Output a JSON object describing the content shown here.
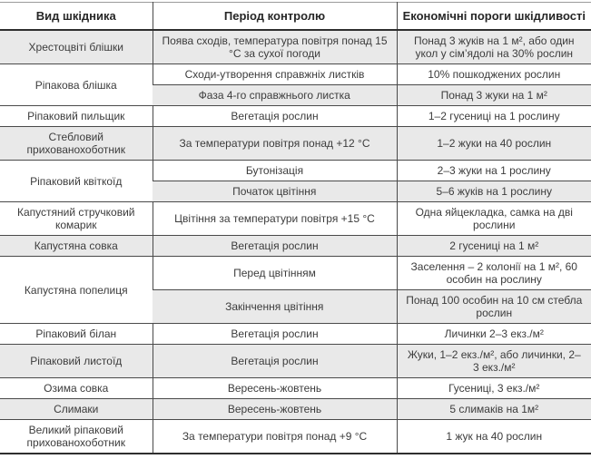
{
  "colors": {
    "stripe": "#e9e9e9",
    "grid_line": "#4a4a4a",
    "heavy_line": "#2e2e2e",
    "text": "#3c3c3c"
  },
  "header": {
    "columns": [
      {
        "label": "Вид шкідника"
      },
      {
        "label": "Період контролю"
      },
      {
        "label": "Економічні пороги шкідливості"
      }
    ]
  },
  "rows": [
    {
      "pest": "Хрестоцвіті блішки",
      "rowspan": 1,
      "period": "Поява сходів, температура повітря понад 15 °C за сухої погоди",
      "threshold": "Понад 3 жуків на 1 м², або один укол у сім’ядолі на 30% рослин"
    },
    {
      "pest": "Ріпакова блішка",
      "rowspan": 2,
      "period": "Сходи-утворення справжніх листків",
      "threshold": "10% пошкоджених рослин"
    },
    {
      "period": "Фаза 4-го справжнього листка",
      "threshold": "Понад 3 жуки на 1 м²"
    },
    {
      "pest": "Ріпаковий пильщик",
      "rowspan": 1,
      "period": "Вегетація рослин",
      "threshold": "1–2 гусениці на 1 рослину"
    },
    {
      "pest": "Стебловий прихованохоботник",
      "rowspan": 1,
      "period": "За температури повітря понад +12 °C",
      "threshold": "1–2 жуки на 40 рослин"
    },
    {
      "pest": "Ріпаковий квіткоїд",
      "rowspan": 2,
      "period": "Бутонізація",
      "threshold": "2–3 жуки на 1 рослину"
    },
    {
      "period": "Початок цвітіння",
      "threshold": "5–6 жуків на 1 рослину"
    },
    {
      "pest": "Капустяний стручковий комарик",
      "rowspan": 1,
      "period": "Цвітіння за температури повітря +15 °C",
      "threshold": "Одна яйцекладка, самка на дві рослини"
    },
    {
      "pest": "Капустяна совка",
      "rowspan": 1,
      "period": "Вегетація рослин",
      "threshold": "2 гусениці на 1 м²"
    },
    {
      "pest": "Капустяна попелиця",
      "rowspan": 2,
      "period": "Перед цвітінням",
      "threshold": "Заселення – 2 колонії на 1 м², 60 особин на рослину"
    },
    {
      "period": "Закінчення цвітіння",
      "threshold": "Понад 100 особин на 10 см стебла рослин"
    },
    {
      "pest": "Ріпаковий білан",
      "rowspan": 1,
      "period": "Вегетація рослин",
      "threshold": "Личинки 2–3 екз./м²"
    },
    {
      "pest": "Ріпаковий листоїд",
      "rowspan": 1,
      "period": "Вегетація рослин",
      "threshold": "Жуки, 1–2 екз./м², або личинки, 2–3 екз./м²"
    },
    {
      "pest": "Озима совка",
      "rowspan": 1,
      "period": "Вересень-жовтень",
      "threshold": "Гусениці, 3 екз./м²"
    },
    {
      "pest": "Слимаки",
      "rowspan": 1,
      "period": "Вересень-жовтень",
      "threshold": "5 слимаків на 1м²"
    },
    {
      "pest": "Великий ріпаковий прихованохоботник",
      "rowspan": 1,
      "period": "За температури повітря понад +9 °C",
      "threshold": "1 жук на 40 рослин"
    }
  ]
}
